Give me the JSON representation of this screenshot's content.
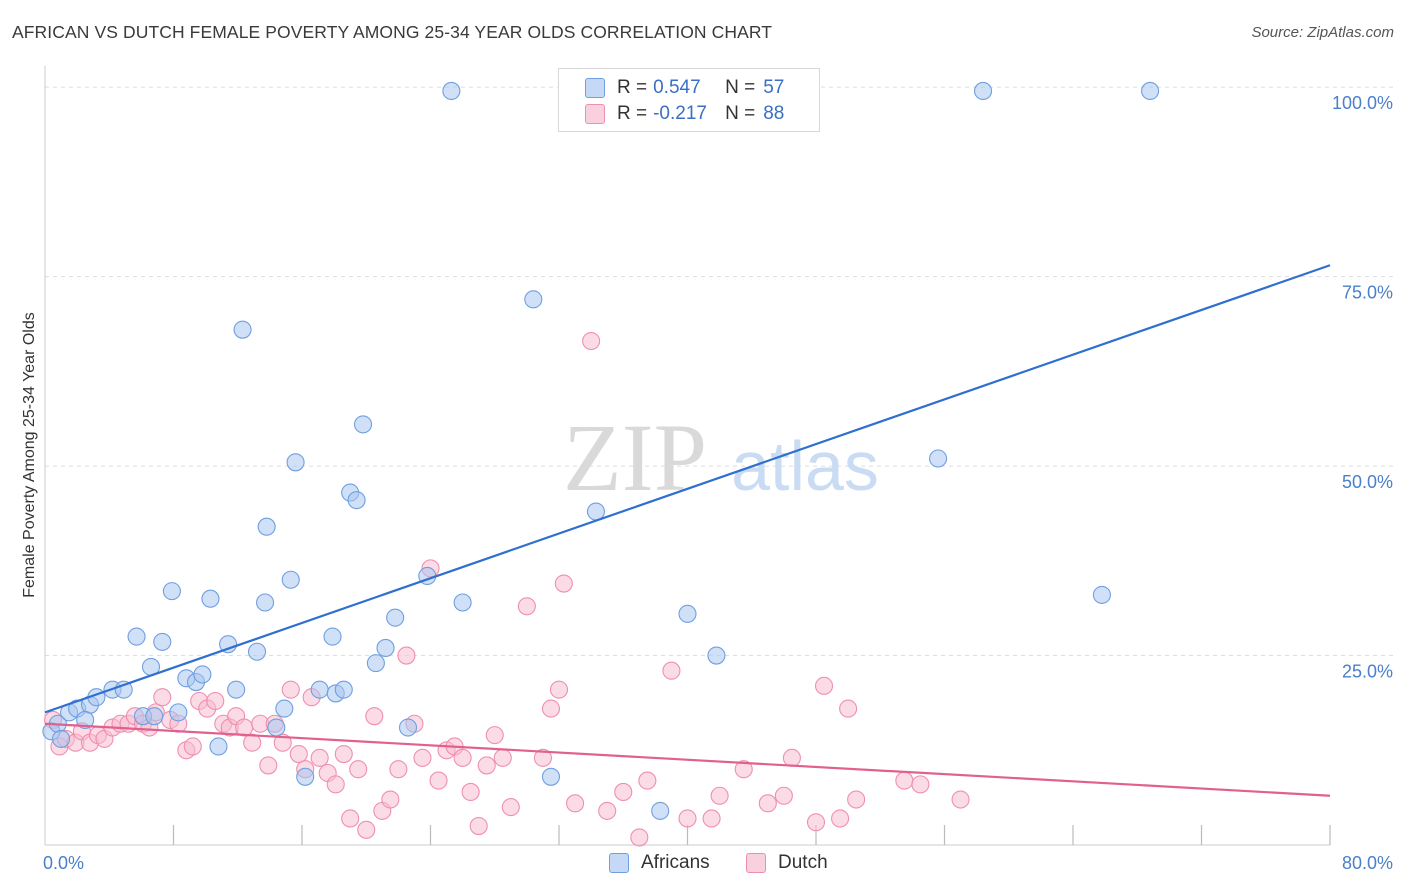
{
  "header": {
    "title": "AFRICAN VS DUTCH FEMALE POVERTY AMONG 25-34 YEAR OLDS CORRELATION CHART",
    "source": "Source: ZipAtlas.com"
  },
  "watermark": {
    "zip": "ZIP",
    "atlas": "atlas"
  },
  "legend": {
    "rows": [
      {
        "r_label": "R =",
        "r_value": "0.547",
        "n_label": "N =",
        "n_value": "57"
      },
      {
        "r_label": "R =",
        "r_value": "-0.217",
        "n_label": "N =",
        "n_value": "88"
      }
    ],
    "bottom": [
      "Africans",
      "Dutch"
    ]
  },
  "colors": {
    "africans_fill": "#a9c6f0",
    "africans_stroke": "#6f9fe0",
    "africans_line": "#2f6fd0",
    "dutch_fill": "#f7bed0",
    "dutch_stroke": "#ef8fb0",
    "dutch_line": "#e0608f",
    "grid": "#dddddd",
    "tick_text": "#4a7fc9"
  },
  "chart_data": {
    "type": "scatter",
    "title": "AFRICAN VS DUTCH FEMALE POVERTY AMONG 25-34 YEAR OLDS CORRELATION CHART",
    "xlabel": "",
    "ylabel": "Female Poverty Among 25-34 Year Olds",
    "xlim": [
      0,
      80
    ],
    "ylim": [
      0,
      102
    ],
    "x_tick_labels": [
      "0.0%",
      "80.0%"
    ],
    "y_ticks": [
      25,
      50,
      75,
      100
    ],
    "y_tick_labels": [
      "25.0%",
      "50.0%",
      "75.0%",
      "100.0%"
    ],
    "grid": true,
    "legend_position": "top-center",
    "series": [
      {
        "name": "Africans",
        "r": 0.547,
        "n": 57,
        "trend": [
          [
            0,
            17.5
          ],
          [
            80,
            76.5
          ]
        ],
        "points": [
          [
            0.4,
            15
          ],
          [
            0.8,
            16
          ],
          [
            1.5,
            17.5
          ],
          [
            2.0,
            18
          ],
          [
            2.8,
            18.5
          ],
          [
            3.2,
            19.5
          ],
          [
            4.2,
            20.5
          ],
          [
            4.9,
            20.5
          ],
          [
            5.7,
            27.5
          ],
          [
            6.1,
            17
          ],
          [
            6.6,
            23.5
          ],
          [
            6.8,
            17
          ],
          [
            7.3,
            26.8
          ],
          [
            7.9,
            33.5
          ],
          [
            8.3,
            17.5
          ],
          [
            8.8,
            22
          ],
          [
            9.4,
            21.5
          ],
          [
            9.8,
            22.5
          ],
          [
            10.3,
            32.5
          ],
          [
            10.8,
            13
          ],
          [
            11.4,
            26.5
          ],
          [
            11.9,
            20.5
          ],
          [
            12.3,
            68
          ],
          [
            13.2,
            25.5
          ],
          [
            13.7,
            32
          ],
          [
            13.8,
            42
          ],
          [
            14.4,
            15.5
          ],
          [
            14.9,
            18
          ],
          [
            15.3,
            35
          ],
          [
            15.6,
            50.5
          ],
          [
            16.2,
            9
          ],
          [
            17.1,
            20.5
          ],
          [
            18.1,
            20
          ],
          [
            17.9,
            27.5
          ],
          [
            18.6,
            20.5
          ],
          [
            19.0,
            46.5
          ],
          [
            19.8,
            55.5
          ],
          [
            19.4,
            45.5
          ],
          [
            20.6,
            24
          ],
          [
            21.2,
            26
          ],
          [
            21.8,
            30
          ],
          [
            22.6,
            15.5
          ],
          [
            23.8,
            35.5
          ],
          [
            25.3,
            99.5
          ],
          [
            26.0,
            32
          ],
          [
            30.4,
            72
          ],
          [
            31.5,
            9
          ],
          [
            34.3,
            44
          ],
          [
            38.3,
            4.5
          ],
          [
            40.0,
            30.5
          ],
          [
            41.8,
            25
          ],
          [
            55.6,
            51
          ],
          [
            58.4,
            99.5
          ],
          [
            68.8,
            99.5
          ],
          [
            65.8,
            33
          ],
          [
            1.0,
            14
          ],
          [
            2.5,
            16.5
          ]
        ]
      },
      {
        "name": "Dutch",
        "r": -0.217,
        "n": 88,
        "trend": [
          [
            0,
            16
          ],
          [
            80,
            6.5
          ]
        ],
        "points": [
          [
            0.5,
            16.5
          ],
          [
            0.9,
            13
          ],
          [
            1.3,
            14
          ],
          [
            1.9,
            13.5
          ],
          [
            2.3,
            15
          ],
          [
            2.8,
            13.5
          ],
          [
            3.3,
            14.5
          ],
          [
            3.7,
            14
          ],
          [
            4.2,
            15.5
          ],
          [
            4.7,
            16
          ],
          [
            5.2,
            16
          ],
          [
            5.6,
            17
          ],
          [
            6.1,
            16
          ],
          [
            6.5,
            15.5
          ],
          [
            6.9,
            17.5
          ],
          [
            7.3,
            19.5
          ],
          [
            7.8,
            16.5
          ],
          [
            8.3,
            16
          ],
          [
            8.8,
            12.5
          ],
          [
            9.2,
            13
          ],
          [
            9.6,
            19
          ],
          [
            10.1,
            18
          ],
          [
            10.6,
            19
          ],
          [
            11.1,
            16
          ],
          [
            11.5,
            15.5
          ],
          [
            11.9,
            17
          ],
          [
            12.4,
            15.5
          ],
          [
            12.9,
            13.5
          ],
          [
            13.4,
            16
          ],
          [
            13.9,
            10.5
          ],
          [
            14.3,
            16
          ],
          [
            14.8,
            13.5
          ],
          [
            15.3,
            20.5
          ],
          [
            15.8,
            12
          ],
          [
            16.2,
            10
          ],
          [
            16.6,
            19.5
          ],
          [
            17.1,
            11.5
          ],
          [
            17.6,
            9.5
          ],
          [
            18.1,
            8
          ],
          [
            18.6,
            12
          ],
          [
            19.0,
            3.5
          ],
          [
            19.5,
            10
          ],
          [
            20.0,
            2
          ],
          [
            20.5,
            17
          ],
          [
            21.0,
            4.5
          ],
          [
            21.5,
            6
          ],
          [
            22.0,
            10
          ],
          [
            22.5,
            25
          ],
          [
            23.0,
            16
          ],
          [
            23.5,
            11.5
          ],
          [
            24.0,
            36.5
          ],
          [
            24.5,
            8.5
          ],
          [
            25.0,
            12.5
          ],
          [
            25.5,
            13
          ],
          [
            26.0,
            11.5
          ],
          [
            26.5,
            7
          ],
          [
            27.0,
            2.5
          ],
          [
            27.5,
            10.5
          ],
          [
            28.0,
            14.5
          ],
          [
            28.5,
            11.5
          ],
          [
            29.0,
            5
          ],
          [
            30.0,
            31.5
          ],
          [
            31.0,
            11.5
          ],
          [
            31.5,
            18
          ],
          [
            32.0,
            20.5
          ],
          [
            32.3,
            34.5
          ],
          [
            33.0,
            5.5
          ],
          [
            34.0,
            66.5
          ],
          [
            35.0,
            4.5
          ],
          [
            36.0,
            7
          ],
          [
            37.0,
            1
          ],
          [
            37.5,
            8.5
          ],
          [
            39.0,
            23
          ],
          [
            40.0,
            3.5
          ],
          [
            41.5,
            3.5
          ],
          [
            42.0,
            6.5
          ],
          [
            43.5,
            10
          ],
          [
            45.0,
            5.5
          ],
          [
            46.0,
            6.5
          ],
          [
            46.5,
            11.5
          ],
          [
            48.0,
            3
          ],
          [
            48.5,
            21
          ],
          [
            49.5,
            3.5
          ],
          [
            50.5,
            6
          ],
          [
            50.0,
            18
          ],
          [
            53.5,
            8.5
          ],
          [
            54.5,
            8
          ],
          [
            57.0,
            6
          ]
        ]
      }
    ]
  }
}
